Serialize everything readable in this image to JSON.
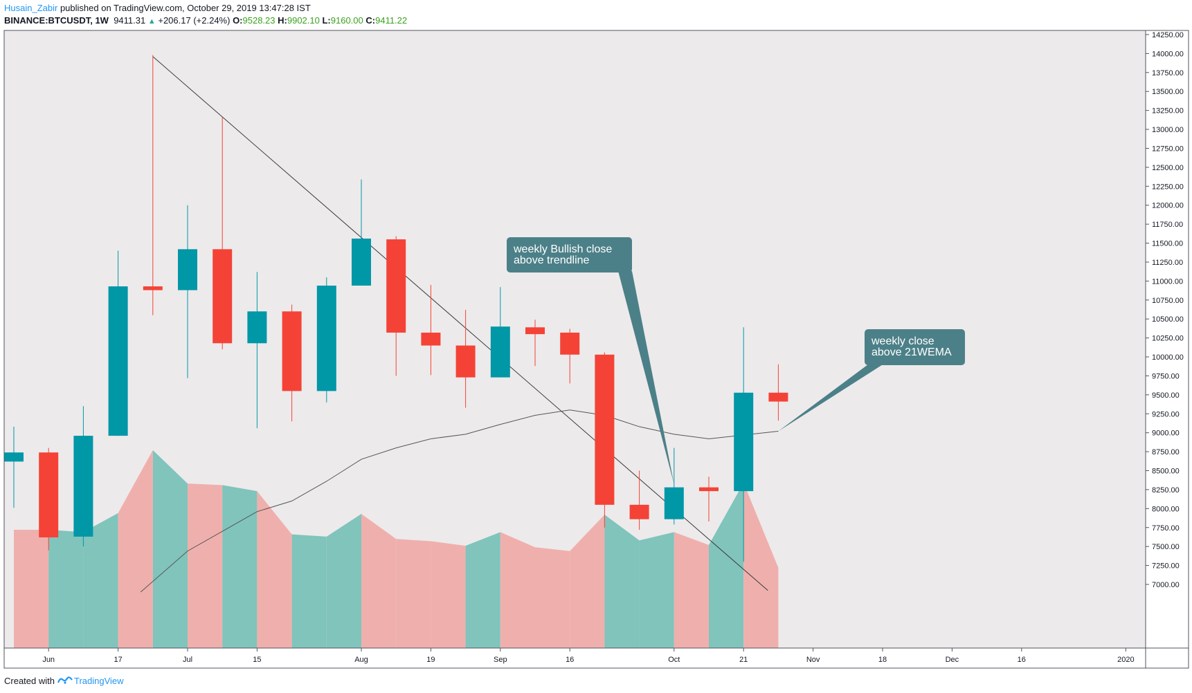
{
  "header": {
    "author": "Husain_Zabir",
    "published": "published on TradingView.com, October 29, 2019 13:47:28 IST",
    "symbol": "BINANCE:BTCUSDT, 1W",
    "last": "9411.31",
    "arrow": "▲",
    "change": "+206.17 (+2.24%)",
    "o_label": "O:",
    "o": "9528.23",
    "h_label": "H:",
    "h": "9902.10",
    "l_label": "L:",
    "l": "9160.00",
    "c_label": "C:",
    "c": "9411.22"
  },
  "footer": {
    "created_with": "Created with",
    "brand": "TradingView"
  },
  "colors": {
    "up": "#0097a7",
    "down": "#f44336",
    "volume_up": "#80c4bc",
    "volume_down": "#efb0ad",
    "background": "#edeaeb",
    "annotation": "#4c8088"
  },
  "chart_data": {
    "type": "candlestick",
    "timeframe": "1W",
    "ylim": [
      7000,
      14250
    ],
    "y_ticks": [
      "14250.00",
      "14000.00",
      "13750.00",
      "13500.00",
      "13250.00",
      "13000.00",
      "12750.00",
      "12500.00",
      "12250.00",
      "12000.00",
      "11750.00",
      "11500.00",
      "11250.00",
      "11000.00",
      "10750.00",
      "10500.00",
      "10250.00",
      "10000.00",
      "9750.00",
      "9500.00",
      "9250.00",
      "9000.00",
      "8750.00",
      "8500.00",
      "8250.00",
      "8000.00",
      "7750.00",
      "7500.00",
      "7250.00",
      "7000.00"
    ],
    "x_ticks": [
      {
        "label": "Jun",
        "index": 1
      },
      {
        "label": "17",
        "index": 3
      },
      {
        "label": "Jul",
        "index": 5
      },
      {
        "label": "15",
        "index": 7
      },
      {
        "label": "Aug",
        "index": 10
      },
      {
        "label": "19",
        "index": 12
      },
      {
        "label": "Sep",
        "index": 14
      },
      {
        "label": "16",
        "index": 16
      },
      {
        "label": "Oct",
        "index": 19
      },
      {
        "label": "21",
        "index": 21
      },
      {
        "label": "Nov",
        "index": 23
      },
      {
        "label": "18",
        "index": 25
      },
      {
        "label": "Dec",
        "index": 27
      },
      {
        "label": "16",
        "index": 29
      },
      {
        "label": "2020",
        "index": 32
      }
    ],
    "candles": [
      {
        "o": 8620,
        "h": 9080,
        "l": 8010,
        "c": 8740
      },
      {
        "o": 8740,
        "h": 8800,
        "l": 7450,
        "c": 7620
      },
      {
        "o": 7630,
        "h": 9350,
        "l": 7500,
        "c": 8960
      },
      {
        "o": 8960,
        "h": 11400,
        "l": 8960,
        "c": 10930
      },
      {
        "o": 10930,
        "h": 13980,
        "l": 10550,
        "c": 10880
      },
      {
        "o": 10880,
        "h": 12000,
        "l": 9720,
        "c": 11420
      },
      {
        "o": 11420,
        "h": 13160,
        "l": 10100,
        "c": 10180
      },
      {
        "o": 10180,
        "h": 11120,
        "l": 9060,
        "c": 10600
      },
      {
        "o": 10600,
        "h": 10690,
        "l": 9150,
        "c": 9550
      },
      {
        "o": 9550,
        "h": 11050,
        "l": 9400,
        "c": 10940
      },
      {
        "o": 10940,
        "h": 12340,
        "l": 10940,
        "c": 11560
      },
      {
        "o": 11550,
        "h": 11590,
        "l": 9750,
        "c": 10320
      },
      {
        "o": 10320,
        "h": 10950,
        "l": 9760,
        "c": 10150
      },
      {
        "o": 10150,
        "h": 10620,
        "l": 9330,
        "c": 9730
      },
      {
        "o": 9730,
        "h": 10920,
        "l": 9730,
        "c": 10400
      },
      {
        "o": 10390,
        "h": 10490,
        "l": 9880,
        "c": 10300
      },
      {
        "o": 10320,
        "h": 10370,
        "l": 9650,
        "c": 10030
      },
      {
        "o": 10030,
        "h": 10060,
        "l": 7750,
        "c": 8050
      },
      {
        "o": 8050,
        "h": 8500,
        "l": 7720,
        "c": 7860
      },
      {
        "o": 7860,
        "h": 8800,
        "l": 7790,
        "c": 8280
      },
      {
        "o": 8280,
        "h": 8420,
        "l": 7830,
        "c": 8230
      },
      {
        "o": 8230,
        "h": 10390,
        "l": 7300,
        "c": 9528
      },
      {
        "o": 9528,
        "h": 9902,
        "l": 9160,
        "c": 9411
      }
    ],
    "volume_area_top": [
      7720,
      7720,
      7690,
      7940,
      8770,
      8330,
      8310,
      8230,
      7660,
      7630,
      7930,
      7600,
      7570,
      7510,
      7690,
      7490,
      7440,
      7920,
      7580,
      7690,
      7520,
      8340,
      7220
    ],
    "volume_up": [
      false,
      false,
      true,
      true,
      false,
      true,
      false,
      true,
      false,
      true,
      true,
      false,
      false,
      false,
      true,
      false,
      false,
      false,
      true,
      true,
      false,
      true,
      false
    ],
    "ema21": [
      [
        3.65,
        6900
      ],
      [
        5.0,
        7440
      ],
      [
        7.0,
        7960
      ],
      [
        8.0,
        8100
      ],
      [
        9.0,
        8360
      ],
      [
        10.0,
        8650
      ],
      [
        11.0,
        8800
      ],
      [
        12.0,
        8920
      ],
      [
        13.0,
        8980
      ],
      [
        14.0,
        9110
      ],
      [
        15.0,
        9230
      ],
      [
        16.0,
        9300
      ],
      [
        17.0,
        9230
      ],
      [
        18.0,
        9080
      ],
      [
        19.0,
        8980
      ],
      [
        20.0,
        8920
      ],
      [
        21.0,
        8970
      ],
      [
        22.0,
        9020
      ]
    ],
    "trendline": [
      [
        4.0,
        13960
      ],
      [
        21.7,
        6920
      ]
    ],
    "annotations": [
      {
        "text_lines": [
          "weekly Bullish close",
          "above trendline"
        ],
        "anchor_index": 19.0,
        "anchor_price": 8320
      },
      {
        "text_lines": [
          "weekly close",
          "above 21WEMA"
        ],
        "anchor_index": 22.0,
        "anchor_price": 9020
      }
    ]
  }
}
